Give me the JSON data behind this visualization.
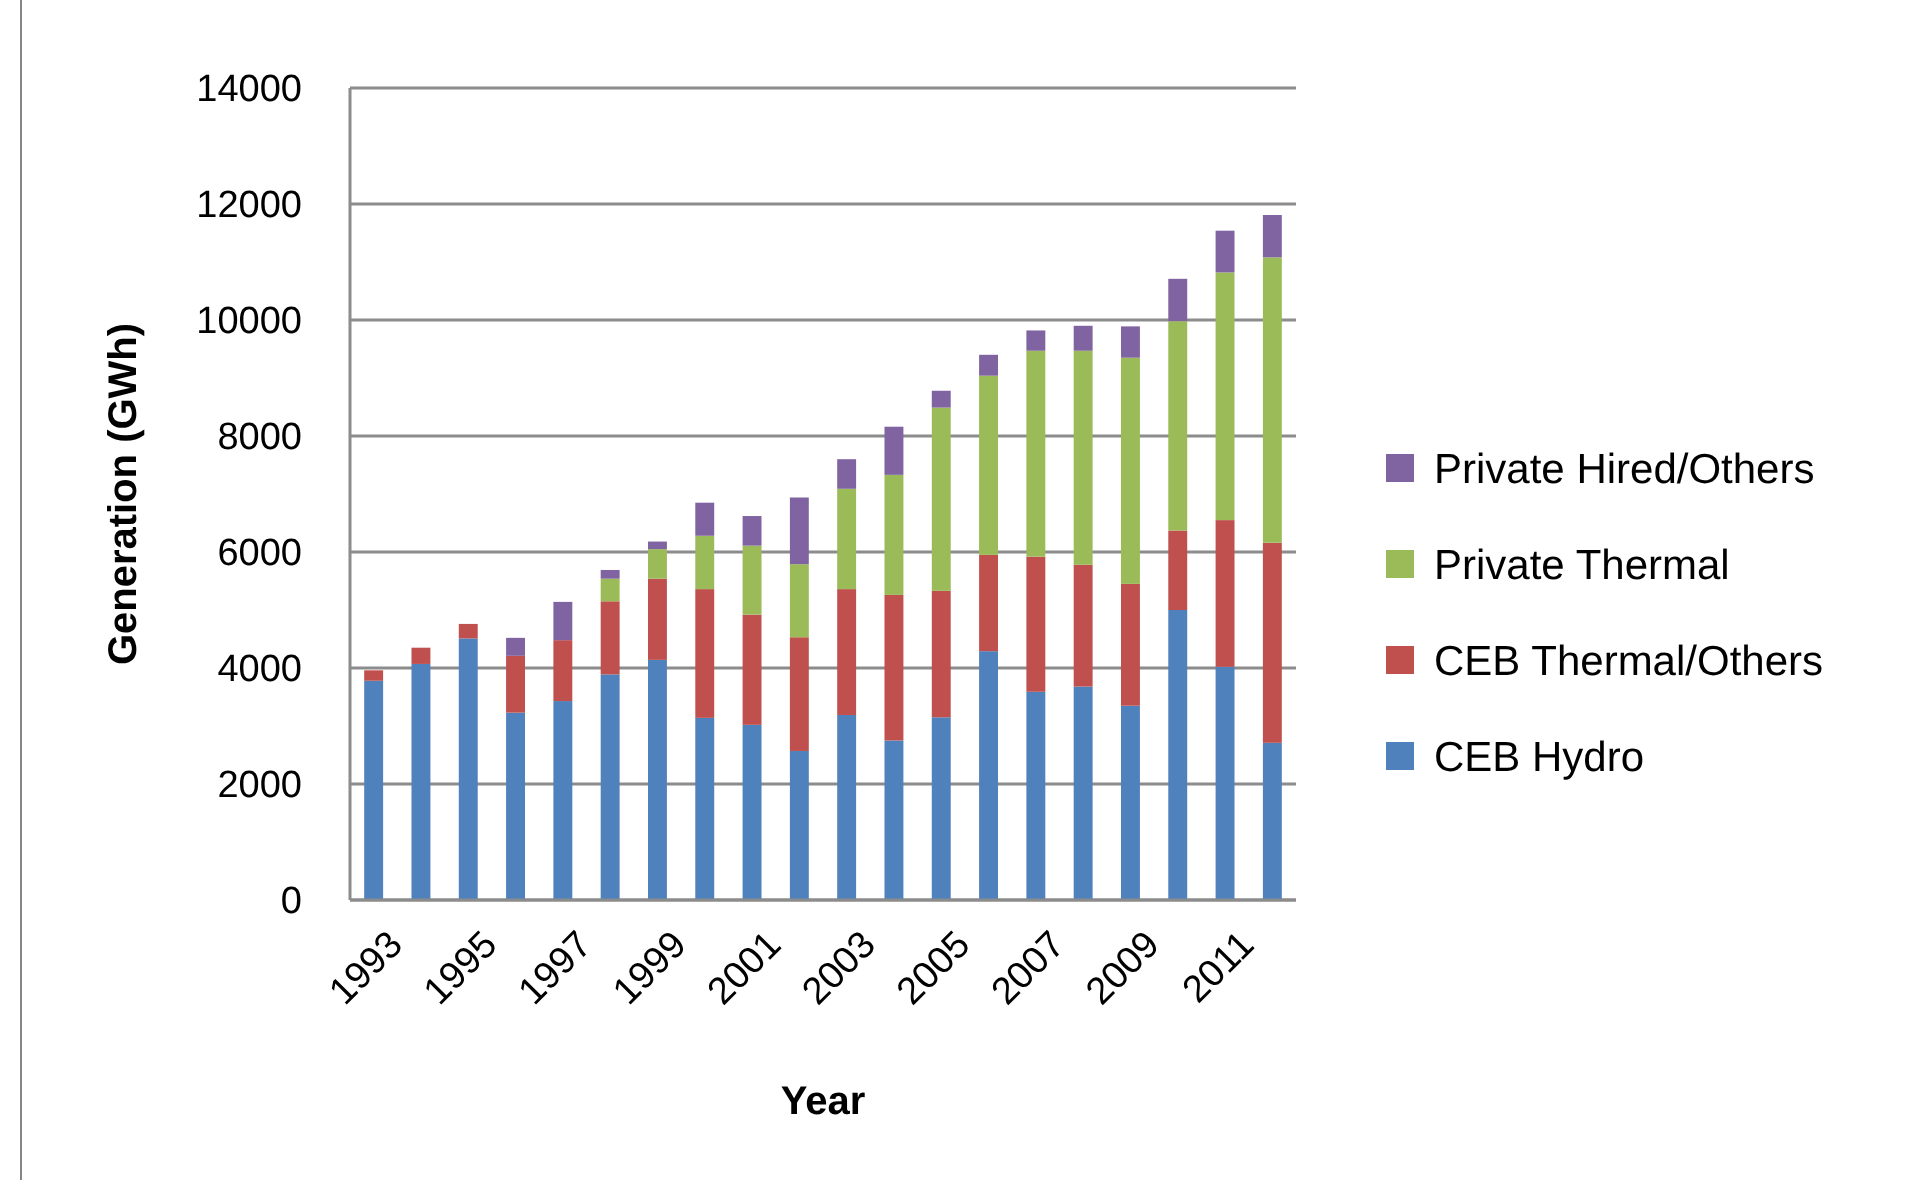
{
  "chart_data": {
    "type": "bar",
    "stacked": true,
    "xlabel": "Year",
    "ylabel": "Generation (GWh)",
    "categories": [
      "1993",
      null,
      "1995",
      null,
      "1997",
      null,
      "1999",
      null,
      "2001",
      null,
      "2003",
      null,
      "2005",
      null,
      "2007",
      null,
      "2009",
      null,
      "2011",
      null
    ],
    "series": [
      {
        "name": "CEB Hydro",
        "color": "#4f81bd",
        "values": [
          3780,
          4070,
          4510,
          3230,
          3430,
          3890,
          4140,
          3140,
          3020,
          2570,
          3190,
          2750,
          3150,
          4290,
          3590,
          3680,
          3350,
          5000,
          4020,
          2710
        ]
      },
      {
        "name": "CEB Thermal/Others",
        "color": "#c0504d",
        "values": [
          180,
          280,
          250,
          980,
          1050,
          1260,
          1400,
          2220,
          1900,
          1960,
          2170,
          2510,
          2180,
          1660,
          2330,
          2100,
          2100,
          1370,
          2530,
          3450
        ]
      },
      {
        "name": "Private Thermal",
        "color": "#9bbb59",
        "values": [
          null,
          null,
          null,
          null,
          null,
          390,
          510,
          920,
          1190,
          1260,
          1730,
          2070,
          3160,
          3090,
          3550,
          3690,
          3900,
          3610,
          4270,
          4920
        ]
      },
      {
        "name": "Private Hired/Others",
        "color": "#8064a2",
        "values": [
          null,
          null,
          null,
          310,
          660,
          150,
          130,
          570,
          510,
          1150,
          510,
          830,
          290,
          360,
          350,
          430,
          540,
          730,
          720,
          730
        ]
      }
    ],
    "ylim": [
      0,
      14000
    ],
    "yticks": [
      0,
      2000,
      4000,
      6000,
      8000,
      10000,
      12000,
      14000
    ],
    "grid": "y",
    "legend": "right"
  }
}
